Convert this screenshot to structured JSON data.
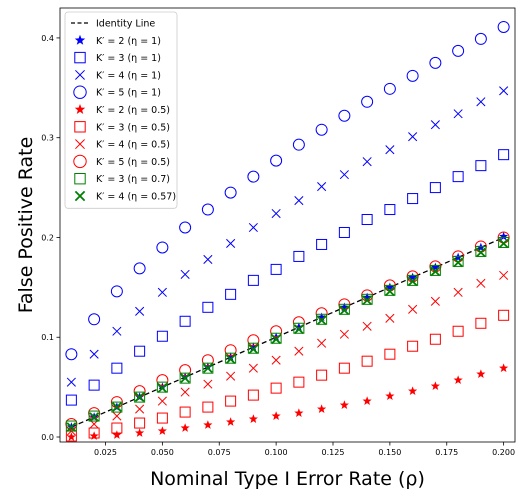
{
  "chart_data": {
    "type": "scatter",
    "xlabel": "Nominal Type I Error Rate (ρ)",
    "ylabel": "False Positive Rate",
    "xlim": [
      0.005,
      0.205
    ],
    "ylim": [
      -0.005,
      0.43
    ],
    "xticks": [
      0.025,
      0.05,
      0.075,
      0.1,
      0.125,
      0.15,
      0.175,
      0.2
    ],
    "xtick_labels": [
      "0.025",
      "0.050",
      "0.075",
      "0.100",
      "0.125",
      "0.150",
      "0.175",
      "0.200"
    ],
    "yticks": [
      0.0,
      0.1,
      0.2,
      0.3,
      0.4
    ],
    "ytick_labels": [
      "0.0",
      "0.1",
      "0.2",
      "0.3",
      "0.4"
    ],
    "grid": false,
    "legend_position": "top-left",
    "x": [
      0.01,
      0.02,
      0.03,
      0.04,
      0.05,
      0.06,
      0.07,
      0.08,
      0.09,
      0.1,
      0.11,
      0.12,
      0.13,
      0.14,
      0.15,
      0.16,
      0.17,
      0.18,
      0.19,
      0.2
    ],
    "identity_line": {
      "name": "Identity Line",
      "x": [
        0.01,
        0.2
      ],
      "y": [
        0.01,
        0.2
      ],
      "color": "#000000",
      "style": "dashed"
    },
    "series": [
      {
        "name": "K′ = 2 (η = 1)",
        "marker": "star",
        "color": "#0000ff",
        "values": [
          0.01,
          0.02,
          0.03,
          0.04,
          0.05,
          0.06,
          0.07,
          0.08,
          0.09,
          0.1,
          0.11,
          0.12,
          0.13,
          0.14,
          0.15,
          0.16,
          0.17,
          0.18,
          0.19,
          0.201
        ]
      },
      {
        "name": "K′ = 3 (η = 1)",
        "marker": "square",
        "color": "#0000ff",
        "values": [
          0.037,
          0.052,
          0.069,
          0.086,
          0.101,
          0.116,
          0.13,
          0.143,
          0.157,
          0.168,
          0.181,
          0.193,
          0.205,
          0.218,
          0.228,
          0.239,
          0.25,
          0.261,
          0.272,
          0.283
        ]
      },
      {
        "name": "K′ = 4 (η = 1)",
        "marker": "x",
        "color": "#0000ff",
        "values": [
          0.055,
          0.083,
          0.106,
          0.126,
          0.145,
          0.163,
          0.178,
          0.194,
          0.21,
          0.224,
          0.237,
          0.251,
          0.263,
          0.276,
          0.288,
          0.301,
          0.313,
          0.324,
          0.336,
          0.347
        ]
      },
      {
        "name": "K′ = 5 (η = 1)",
        "marker": "circle",
        "color": "#0000ff",
        "values": [
          0.083,
          0.118,
          0.146,
          0.169,
          0.19,
          0.21,
          0.228,
          0.245,
          0.261,
          0.277,
          0.293,
          0.308,
          0.322,
          0.336,
          0.349,
          0.362,
          0.375,
          0.387,
          0.399,
          0.411
        ]
      },
      {
        "name": "K′ = 2 (η = 0.5)",
        "marker": "star",
        "color": "#ff0000",
        "values": [
          0.0,
          0.001,
          0.002,
          0.004,
          0.006,
          0.009,
          0.012,
          0.015,
          0.018,
          0.021,
          0.024,
          0.028,
          0.032,
          0.036,
          0.041,
          0.046,
          0.051,
          0.057,
          0.063,
          0.069
        ]
      },
      {
        "name": "K′ = 3 (η = 0.5)",
        "marker": "square",
        "color": "#ff0000",
        "values": [
          0.001,
          0.004,
          0.009,
          0.014,
          0.019,
          0.025,
          0.03,
          0.036,
          0.042,
          0.049,
          0.055,
          0.062,
          0.069,
          0.076,
          0.083,
          0.091,
          0.098,
          0.106,
          0.114,
          0.122
        ]
      },
      {
        "name": "K′ = 4 (η = 0.5)",
        "marker": "x",
        "color": "#ff0000",
        "values": [
          0.006,
          0.013,
          0.021,
          0.028,
          0.036,
          0.045,
          0.053,
          0.061,
          0.069,
          0.077,
          0.086,
          0.094,
          0.103,
          0.111,
          0.119,
          0.128,
          0.136,
          0.145,
          0.154,
          0.162
        ]
      },
      {
        "name": "K′ = 5 (η = 0.5)",
        "marker": "circle",
        "color": "#ff0000",
        "values": [
          0.013,
          0.024,
          0.035,
          0.046,
          0.057,
          0.067,
          0.077,
          0.087,
          0.097,
          0.106,
          0.115,
          0.124,
          0.133,
          0.142,
          0.152,
          0.161,
          0.171,
          0.181,
          0.191,
          0.2
        ]
      },
      {
        "name": "K′ = 3 (η = 0.7)",
        "marker": "square",
        "color": "#008000",
        "values": [
          0.011,
          0.021,
          0.03,
          0.04,
          0.05,
          0.059,
          0.069,
          0.079,
          0.089,
          0.099,
          0.109,
          0.118,
          0.128,
          0.138,
          0.147,
          0.157,
          0.167,
          0.176,
          0.186,
          0.195
        ]
      },
      {
        "name": "K′ = 4 (η = 0.57)",
        "marker": "x",
        "color": "#008000",
        "values": [
          0.01,
          0.02,
          0.03,
          0.04,
          0.049,
          0.059,
          0.069,
          0.078,
          0.088,
          0.098,
          0.108,
          0.117,
          0.127,
          0.137,
          0.146,
          0.156,
          0.166,
          0.175,
          0.185,
          0.194
        ]
      }
    ]
  }
}
